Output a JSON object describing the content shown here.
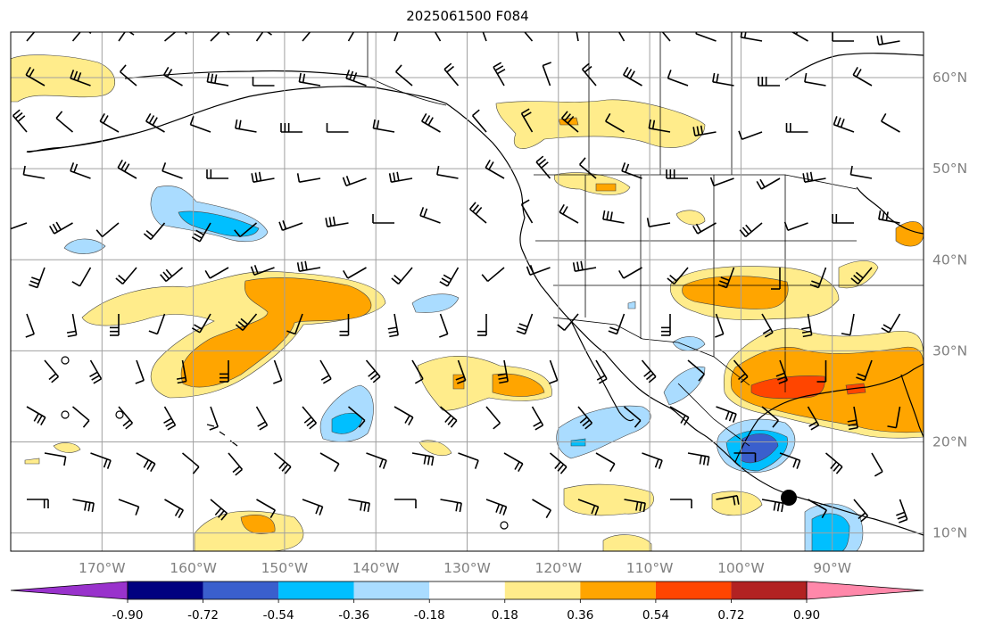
{
  "title": "2025061500 F084",
  "map": {
    "lon_range": [
      -180,
      -80
    ],
    "lat_range": [
      8,
      65
    ],
    "lat_labels": [
      {
        "lat": 60,
        "text": "60°N"
      },
      {
        "lat": 50,
        "text": "50°N"
      },
      {
        "lat": 40,
        "text": "40°N"
      },
      {
        "lat": 30,
        "text": "30°N"
      },
      {
        "lat": 20,
        "text": "20°N"
      },
      {
        "lat": 10,
        "text": "10°N"
      }
    ],
    "lon_labels": [
      {
        "lon": -170,
        "text": "170°W"
      },
      {
        "lon": -160,
        "text": "160°W"
      },
      {
        "lon": -150,
        "text": "150°W"
      },
      {
        "lon": -140,
        "text": "140°W"
      },
      {
        "lon": -130,
        "text": "130°W"
      },
      {
        "lon": -120,
        "text": "120°W"
      },
      {
        "lon": -110,
        "text": "110°W"
      },
      {
        "lon": -100,
        "text": "100°W"
      },
      {
        "lon": -90,
        "text": "90°W"
      }
    ],
    "gridlines": true
  },
  "colorbar": {
    "levels": [
      "-0.90",
      "-0.72",
      "-0.54",
      "-0.36",
      "-0.18",
      "0.18",
      "0.36",
      "0.54",
      "0.72",
      "0.90"
    ],
    "colors": [
      "#9932cc",
      "#000080",
      "#3a5fcd",
      "#00bfff",
      "#aadcff",
      "#ffffff",
      "#ffec8b",
      "#ffa500",
      "#ff4500",
      "#b22222",
      "#ff88aa"
    ],
    "extend": "both"
  }
}
